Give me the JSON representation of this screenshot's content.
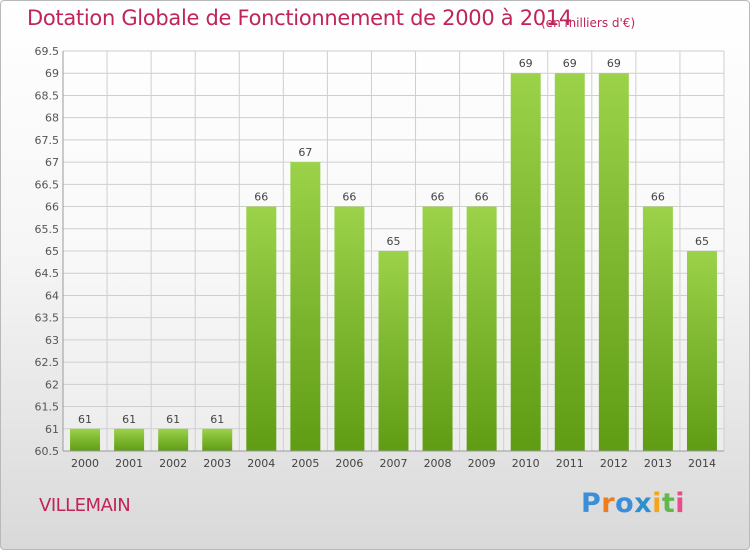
{
  "title": "Dotation Globale de Fonctionnement de 2000 à 2014",
  "subtitle": "(en milliers d'€)",
  "commune": "VILLEMAIN",
  "logo": {
    "letters": [
      "P",
      "r",
      "o",
      "x",
      "i",
      "t",
      "i"
    ],
    "colors": [
      "#3a8fd8",
      "#ef7d1f",
      "#3a8fd8",
      "#2f8fcf",
      "#f2a51d",
      "#64b84b",
      "#e94c8a"
    ]
  },
  "chart_data": {
    "type": "bar",
    "categories": [
      "2000",
      "2001",
      "2002",
      "2003",
      "2004",
      "2005",
      "2006",
      "2007",
      "2008",
      "2009",
      "2010",
      "2011",
      "2012",
      "2013",
      "2014"
    ],
    "values": [
      61,
      61,
      61,
      61,
      66,
      67,
      66,
      65,
      66,
      66,
      69,
      69,
      69,
      66,
      65
    ],
    "value_labels": [
      "61",
      "61",
      "61",
      "61",
      "66",
      "67",
      "66",
      "65",
      "66",
      "66",
      "69",
      "69",
      "69",
      "66",
      "65"
    ],
    "y_ticks": [
      "60.5",
      "61",
      "61.5",
      "62",
      "62.5",
      "63",
      "63.5",
      "64",
      "64.5",
      "65",
      "65.5",
      "66",
      "66.5",
      "67",
      "67.5",
      "68",
      "68.5",
      "69",
      "69.5"
    ],
    "ylim": [
      60.5,
      69.5
    ],
    "grid": true,
    "bar_color": "#8cc83c",
    "title_color": "#c0245a"
  }
}
